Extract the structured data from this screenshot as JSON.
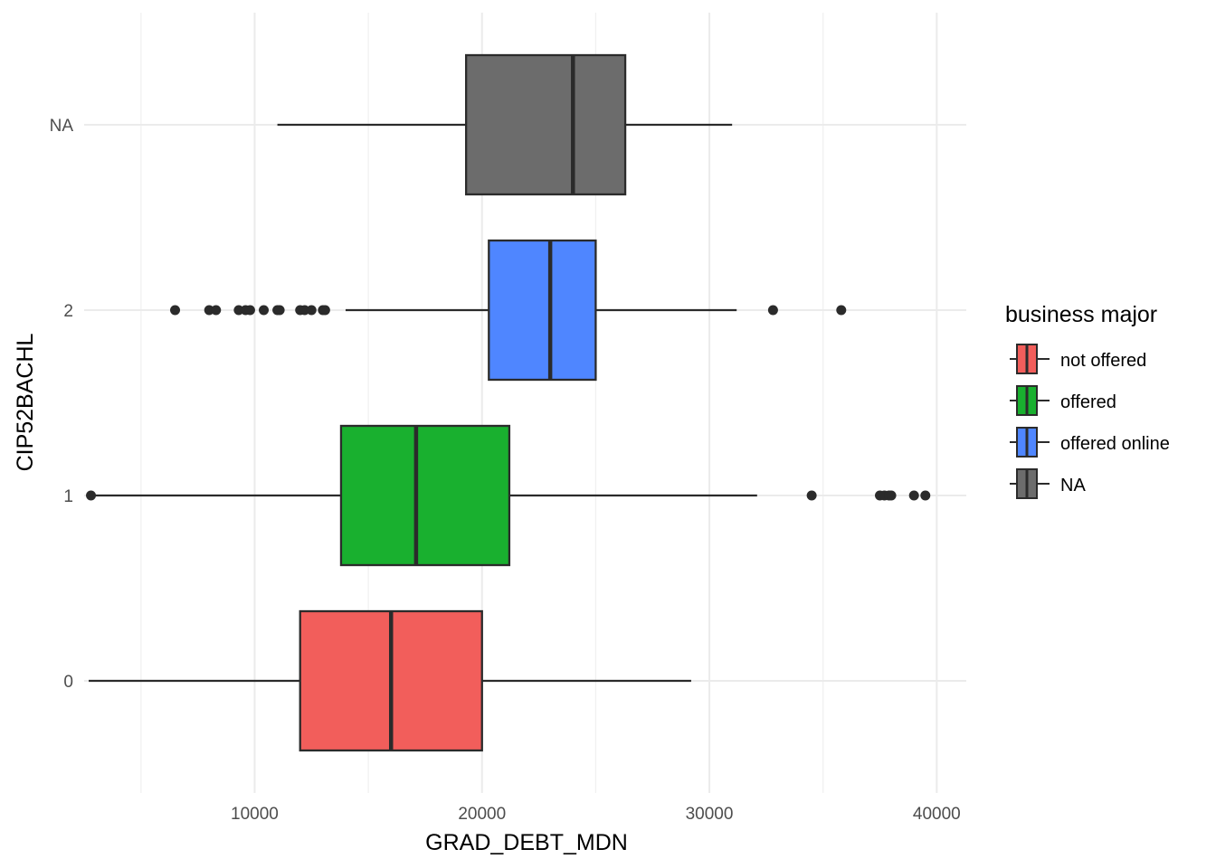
{
  "chart_data": {
    "type": "boxplot",
    "orientation": "horizontal",
    "xlabel": "GRAD_DEBT_MDN",
    "ylabel": "CIP52BACHL",
    "xlim": [
      2500,
      41300
    ],
    "x_ticks": [
      10000,
      20000,
      30000,
      40000
    ],
    "x_tick_labels": [
      "10000",
      "20000",
      "30000",
      "40000"
    ],
    "categories": [
      "0",
      "1",
      "2",
      "NA"
    ],
    "grid": true,
    "legend": {
      "title": "business major",
      "position": "right",
      "entries": [
        {
          "label": "not offered",
          "color": "#F25E5B"
        },
        {
          "label": "offered",
          "color": "#19B02F"
        },
        {
          "label": "offered online",
          "color": "#4F86FF"
        },
        {
          "label": "NA",
          "color": "#6C6C6C"
        }
      ]
    },
    "series": [
      {
        "category": "0",
        "group": "not offered",
        "whisker_low": 2700,
        "q1": 12000,
        "median": 16000,
        "q3": 20000,
        "whisker_high": 29200,
        "outliers": []
      },
      {
        "category": "1",
        "group": "offered",
        "whisker_low": 2800,
        "q1": 13800,
        "median": 17100,
        "q3": 21200,
        "whisker_high": 32100,
        "outliers": [
          2800,
          34500,
          37500,
          37700,
          37900,
          38000,
          39000,
          39500
        ]
      },
      {
        "category": "2",
        "group": "offered online",
        "whisker_low": 14000,
        "q1": 20300,
        "median": 23000,
        "q3": 25000,
        "whisker_high": 31200,
        "outliers": [
          6500,
          8000,
          8300,
          9300,
          9600,
          9800,
          10400,
          11000,
          11100,
          12000,
          12200,
          12500,
          13000,
          13100,
          32800,
          35800
        ]
      },
      {
        "category": "NA",
        "group": "NA",
        "whisker_low": 11000,
        "q1": 19300,
        "median": 24000,
        "q3": 26300,
        "whisker_high": 31000,
        "outliers": []
      }
    ]
  }
}
